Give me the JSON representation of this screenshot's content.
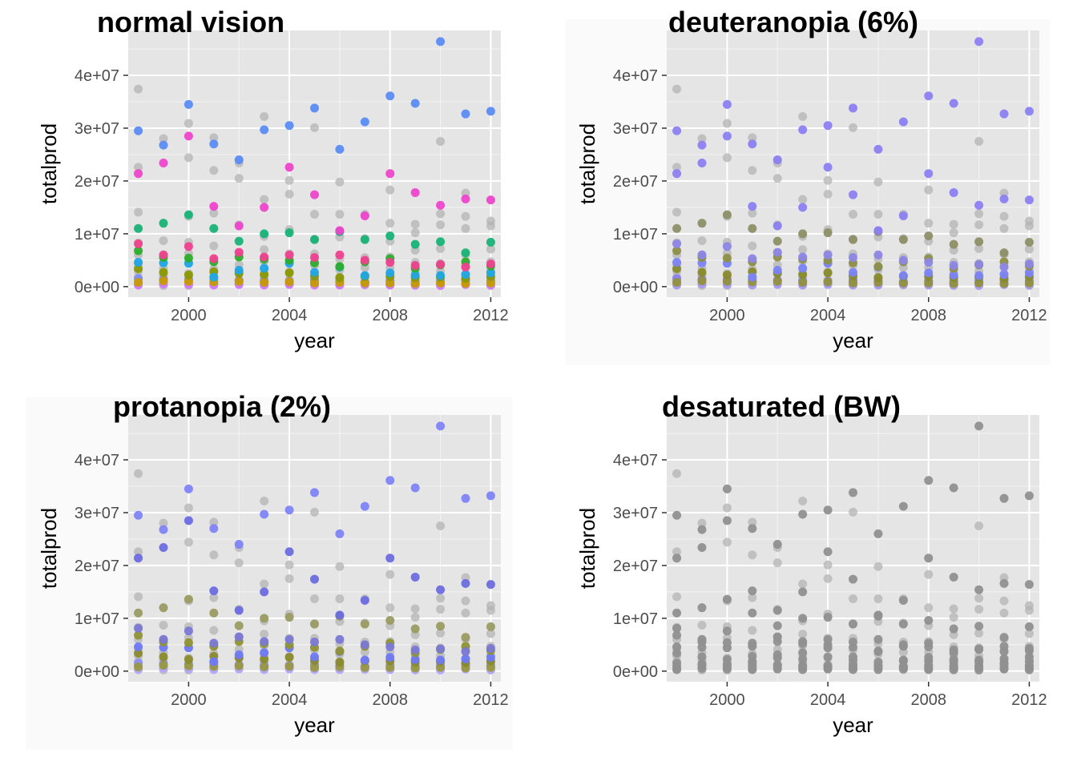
{
  "colors": {
    "panel_background": "#e5e5e5",
    "grid": "#ffffff",
    "context_points": "#b3b3b3",
    "series_normal": [
      "#5b8cf7",
      "#ee44cc",
      "#f0408f",
      "#18b376",
      "#2bad2b",
      "#1fa7e6",
      "#8a9800",
      "#c79a00",
      "#7e8bff",
      "#cf7aff"
    ],
    "series_deuteranopia": [
      "#8b7ff2",
      "#8b7ff2",
      "#8d86e6",
      "#8d8f67",
      "#8d8f45",
      "#7b83f8",
      "#888a2a",
      "#93903d",
      "#8a80f5",
      "#a79af3"
    ],
    "series_protanopia": [
      "#8083f8",
      "#6b6be0",
      "#7a78d4",
      "#9a9b62",
      "#8f9330",
      "#6f79f6",
      "#8a8a2b",
      "#9a9842",
      "#8a8cff",
      "#b3a6ff"
    ],
    "series_desaturated": [
      "#909090",
      "#909090",
      "#909090",
      "#909090",
      "#909090",
      "#909090",
      "#909090",
      "#909090",
      "#909090",
      "#909090"
    ]
  },
  "chart_data": [
    {
      "type": "scatter",
      "title": "normal vision",
      "xlabel": "year",
      "ylabel": "totalprod",
      "xlim": [
        1997.6,
        2012.4
      ],
      "ylim": [
        -2000000,
        48500000
      ],
      "xticks": [
        2000,
        2004,
        2008,
        2012
      ],
      "xtick_labels": [
        "2000",
        "2004",
        "2008",
        "2012"
      ],
      "yticks": [
        0,
        10000000,
        20000000,
        30000000,
        40000000
      ],
      "ytick_labels": [
        "0e+00",
        "1e+07",
        "2e+07",
        "3e+07",
        "4e+07"
      ],
      "palette": "series_normal",
      "grid": true,
      "legend": "none"
    },
    {
      "type": "scatter",
      "title": "deuteranopia (6%)",
      "xlabel": "year",
      "ylabel": "totalprod",
      "xlim": [
        1997.6,
        2012.4
      ],
      "ylim": [
        -2000000,
        48500000
      ],
      "xticks": [
        2000,
        2004,
        2008,
        2012
      ],
      "xtick_labels": [
        "2000",
        "2004",
        "2008",
        "2012"
      ],
      "yticks": [
        0,
        10000000,
        20000000,
        30000000,
        40000000
      ],
      "ytick_labels": [
        "0e+00",
        "1e+07",
        "2e+07",
        "3e+07",
        "4e+07"
      ],
      "palette": "series_deuteranopia",
      "grid": true,
      "legend": "none"
    },
    {
      "type": "scatter",
      "title": "protanopia (2%)",
      "xlabel": "year",
      "ylabel": "totalprod",
      "xlim": [
        1997.6,
        2012.4
      ],
      "ylim": [
        -2000000,
        48500000
      ],
      "xticks": [
        2000,
        2004,
        2008,
        2012
      ],
      "xtick_labels": [
        "2000",
        "2004",
        "2008",
        "2012"
      ],
      "yticks": [
        0,
        10000000,
        20000000,
        30000000,
        40000000
      ],
      "ytick_labels": [
        "0e+00",
        "1e+07",
        "2e+07",
        "3e+07",
        "4e+07"
      ],
      "palette": "series_protanopia",
      "grid": true,
      "legend": "none"
    },
    {
      "type": "scatter",
      "title": "desaturated (BW)",
      "xlabel": "year",
      "ylabel": "totalprod",
      "xlim": [
        1997.6,
        2012.4
      ],
      "ylim": [
        -2000000,
        48500000
      ],
      "xticks": [
        2000,
        2004,
        2008,
        2012
      ],
      "xtick_labels": [
        "2000",
        "2004",
        "2008",
        "2012"
      ],
      "yticks": [
        0,
        10000000,
        20000000,
        30000000,
        40000000
      ],
      "ytick_labels": [
        "0e+00",
        "1e+07",
        "2e+07",
        "3e+07",
        "4e+07"
      ],
      "palette": "series_desaturated",
      "grid": true,
      "legend": "none"
    }
  ],
  "shared_data": {
    "x": [
      1998,
      1999,
      2000,
      2001,
      2002,
      2003,
      2004,
      2005,
      2006,
      2007,
      2008,
      2009,
      2010,
      2011,
      2012
    ],
    "context": [
      [
        37400000,
        22600000,
        14100000,
        8300000,
        6000000,
        4200000,
        2900000,
        1800000,
        900000,
        300000
      ],
      [
        28000000,
        8700000,
        6000000,
        3500000,
        2100000,
        1300000,
        700000,
        200000
      ],
      [
        30900000,
        24400000,
        13300000,
        8400000,
        6300000,
        4500000,
        2500000,
        1400000,
        700000,
        200000
      ],
      [
        28200000,
        22000000,
        13900000,
        7700000,
        5000000,
        3300000,
        1900000,
        800000,
        300000
      ],
      [
        23400000,
        20500000,
        11700000,
        6400000,
        4100000,
        2600000,
        1200000,
        500000
      ],
      [
        32200000,
        16500000,
        9500000,
        7000000,
        4800000,
        3200000,
        1800000,
        800000,
        300000
      ],
      [
        20100000,
        17500000,
        10800000,
        6200000,
        4500000,
        2800000,
        1300000,
        500000
      ],
      [
        30100000,
        13700000,
        9000000,
        6200000,
        4000000,
        2200000,
        1000000,
        300000
      ],
      [
        19800000,
        13700000,
        9400000,
        5200000,
        3200000,
        1800000,
        900000,
        300000
      ],
      [
        13700000,
        9100000,
        5500000,
        3600000,
        2000000,
        900000,
        300000
      ],
      [
        18300000,
        12000000,
        8600000,
        5600000,
        3600000,
        2100000,
        1000000,
        300000
      ],
      [
        11800000,
        10200000,
        6900000,
        4600000,
        3000000,
        1800000,
        800000,
        200000
      ],
      [
        27500000,
        13800000,
        11700000,
        7200000,
        4400000,
        2900000,
        1500000,
        600000
      ],
      [
        17700000,
        13300000,
        11000000,
        6100000,
        3900000,
        2400000,
        1200000,
        400000
      ],
      [
        12400000,
        11500000,
        7100000,
        4700000,
        3000000,
        1700000,
        800000,
        200000
      ]
    ],
    "series": [
      {
        "values": [
          29500000,
          26800000,
          34500000,
          27000000,
          24000000,
          29700000,
          30500000,
          33800000,
          26000000,
          31200000,
          36100000,
          34700000,
          46400000,
          32700000,
          33200000
        ]
      },
      {
        "values": [
          21400000,
          23400000,
          28500000,
          15200000,
          11500000,
          15000000,
          22600000,
          17400000,
          10600000,
          13400000,
          21400000,
          17800000,
          15400000,
          16600000,
          16400000
        ]
      },
      {
        "values": [
          8100000,
          6000000,
          7600000,
          5300000,
          6500000,
          5600000,
          6000000,
          5500000,
          6000000,
          5000000,
          4600000,
          4000000,
          4200000,
          3700000,
          4300000
        ]
      },
      {
        "values": [
          11000000,
          12000000,
          13600000,
          11000000,
          8600000,
          10000000,
          10200000,
          8900000,
          10400000,
          8900000,
          9600000,
          8000000,
          8500000,
          6400000,
          8400000
        ]
      },
      {
        "values": [
          6800000,
          5500000,
          5400000,
          4700000,
          5600000,
          5200000,
          5000000,
          4500000,
          3800000,
          4700000,
          5300000,
          3500000,
          4100000,
          4700000,
          3900000
        ]
      },
      {
        "values": [
          4600000,
          4500000,
          4400000,
          1800000,
          3100000,
          3500000,
          4400000,
          2700000,
          3700000,
          2100000,
          2600000,
          2200000,
          2100000,
          2300000,
          2600000
        ]
      },
      {
        "values": [
          3400000,
          2700000,
          2200000,
          2800000,
          2500000,
          2300000,
          2600000,
          2000000,
          1700000,
          1900000,
          1900000,
          1700000,
          1800000,
          1600000,
          1900000
        ]
      },
      {
        "values": [
          800000,
          1100000,
          1000000,
          900000,
          1000000,
          800000,
          900000,
          700000,
          800000,
          700000,
          700000,
          600000,
          700000,
          600000,
          700000
        ]
      },
      {
        "values": [
          1500000,
          1400000,
          1300000,
          1400000,
          1200000,
          1100000,
          1000000,
          1300000,
          1100000,
          900000,
          1100000,
          1000000,
          1000000,
          1200000,
          1100000
        ]
      },
      {
        "values": [
          300000,
          500000,
          400000,
          300000,
          400000,
          300000,
          400000,
          300000,
          300000,
          400000,
          300000,
          300000,
          200000,
          400000,
          300000
        ]
      }
    ]
  }
}
